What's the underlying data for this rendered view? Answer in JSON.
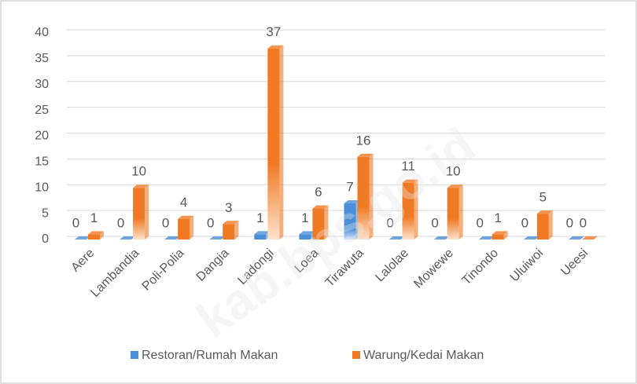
{
  "chart_data": {
    "type": "bar",
    "categories": [
      "Aere",
      "Lambandia",
      "Poli-Polia",
      "Dangia",
      "Ladongi",
      "Loea",
      "Tirawuta",
      "Lalolae",
      "Mowewe",
      "Tinondo",
      "Uluiwoi",
      "Ueesi"
    ],
    "series": [
      {
        "name": "Restoran/Rumah Makan",
        "color": "#4a8fd8",
        "values": [
          0,
          0,
          0,
          0,
          1,
          1,
          7,
          0,
          0,
          0,
          0,
          0
        ]
      },
      {
        "name": "Warung/Kedai Makan",
        "color": "#f07a24",
        "values": [
          1,
          10,
          4,
          3,
          37,
          6,
          16,
          11,
          10,
          1,
          5,
          0
        ]
      }
    ],
    "ylim": [
      0,
      40
    ],
    "yticks": [
      0,
      5,
      10,
      15,
      20,
      25,
      30,
      35,
      40
    ],
    "grid": true,
    "watermark": "kab.bps.go.id"
  }
}
